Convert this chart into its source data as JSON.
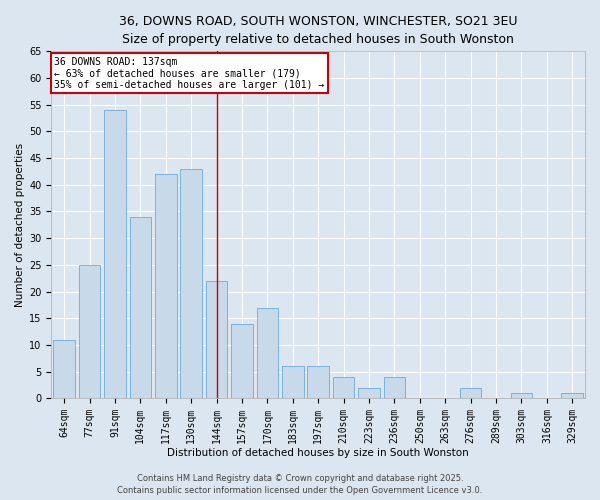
{
  "title1": "36, DOWNS ROAD, SOUTH WONSTON, WINCHESTER, SO21 3EU",
  "title2": "Size of property relative to detached houses in South Wonston",
  "xlabel": "Distribution of detached houses by size in South Wonston",
  "ylabel": "Number of detached properties",
  "categories": [
    "64sqm",
    "77sqm",
    "91sqm",
    "104sqm",
    "117sqm",
    "130sqm",
    "144sqm",
    "157sqm",
    "170sqm",
    "183sqm",
    "197sqm",
    "210sqm",
    "223sqm",
    "236sqm",
    "250sqm",
    "263sqm",
    "276sqm",
    "289sqm",
    "303sqm",
    "316sqm",
    "329sqm"
  ],
  "values": [
    11,
    25,
    54,
    34,
    42,
    43,
    22,
    14,
    17,
    6,
    6,
    4,
    2,
    4,
    0,
    0,
    2,
    0,
    1,
    0,
    1
  ],
  "bar_color": "#c8d9ea",
  "bar_edge_color": "#6aacdc",
  "bg_color": "#dce6f0",
  "grid_color": "#ffffff",
  "vline_x": 6.0,
  "vline_color": "#cc0000",
  "annotation_text": "36 DOWNS ROAD: 137sqm\n← 63% of detached houses are smaller (179)\n35% of semi-detached houses are larger (101) →",
  "annotation_box_color": "#cc0000",
  "footer1": "Contains HM Land Registry data © Crown copyright and database right 2025.",
  "footer2": "Contains public sector information licensed under the Open Government Licence v3.0.",
  "ylim": [
    0,
    65
  ],
  "yticks": [
    0,
    5,
    10,
    15,
    20,
    25,
    30,
    35,
    40,
    45,
    50,
    55,
    60,
    65
  ],
  "title1_fontsize": 9,
  "title2_fontsize": 8.5,
  "axis_label_fontsize": 7.5,
  "tick_fontsize": 7,
  "annotation_fontsize": 7,
  "footer_fontsize": 6
}
